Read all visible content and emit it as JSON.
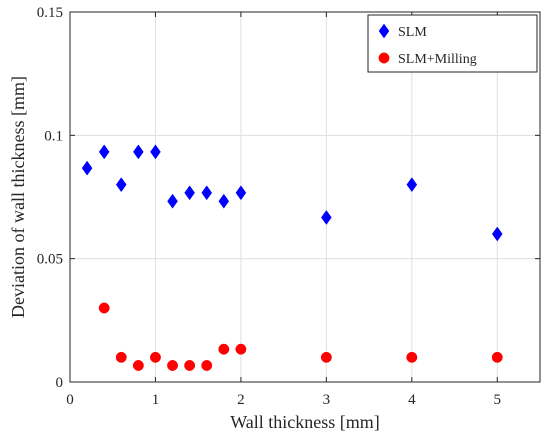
{
  "chart_data": {
    "type": "scatter",
    "title": "",
    "xlabel": "Wall thickness [mm]",
    "ylabel": "Deviation of wall thickness [mm]",
    "xlim": [
      0,
      5.5
    ],
    "ylim": [
      0,
      0.15
    ],
    "xticks": [
      0,
      1,
      2,
      3,
      4,
      5
    ],
    "yticks": [
      0,
      0.05,
      0.1,
      0.15
    ],
    "xtick_labels": [
      "0",
      "1",
      "2",
      "3",
      "4",
      "5"
    ],
    "ytick_labels": [
      "0",
      "0.05",
      "0.1",
      "0.15"
    ],
    "grid": true,
    "legend_position": "top-right",
    "series": [
      {
        "name": "SLM",
        "marker": "diamond",
        "color": "#0000ff",
        "x": [
          0.2,
          0.4,
          0.6,
          0.8,
          1.0,
          1.2,
          1.4,
          1.6,
          1.8,
          2.0,
          3.0,
          4.0,
          5.0
        ],
        "y": [
          0.0867,
          0.0933,
          0.08,
          0.0933,
          0.0933,
          0.0733,
          0.0767,
          0.0767,
          0.0733,
          0.0767,
          0.0667,
          0.08,
          0.06
        ]
      },
      {
        "name": "SLM+Milling",
        "marker": "circle",
        "color": "#ff0000",
        "x": [
          0.4,
          0.6,
          0.8,
          1.0,
          1.2,
          1.4,
          1.6,
          1.8,
          2.0,
          3.0,
          4.0,
          5.0
        ],
        "y": [
          0.03,
          0.01,
          0.0067,
          0.01,
          0.0067,
          0.0067,
          0.0067,
          0.0133,
          0.0133,
          0.01,
          0.01,
          0.01
        ]
      }
    ]
  }
}
